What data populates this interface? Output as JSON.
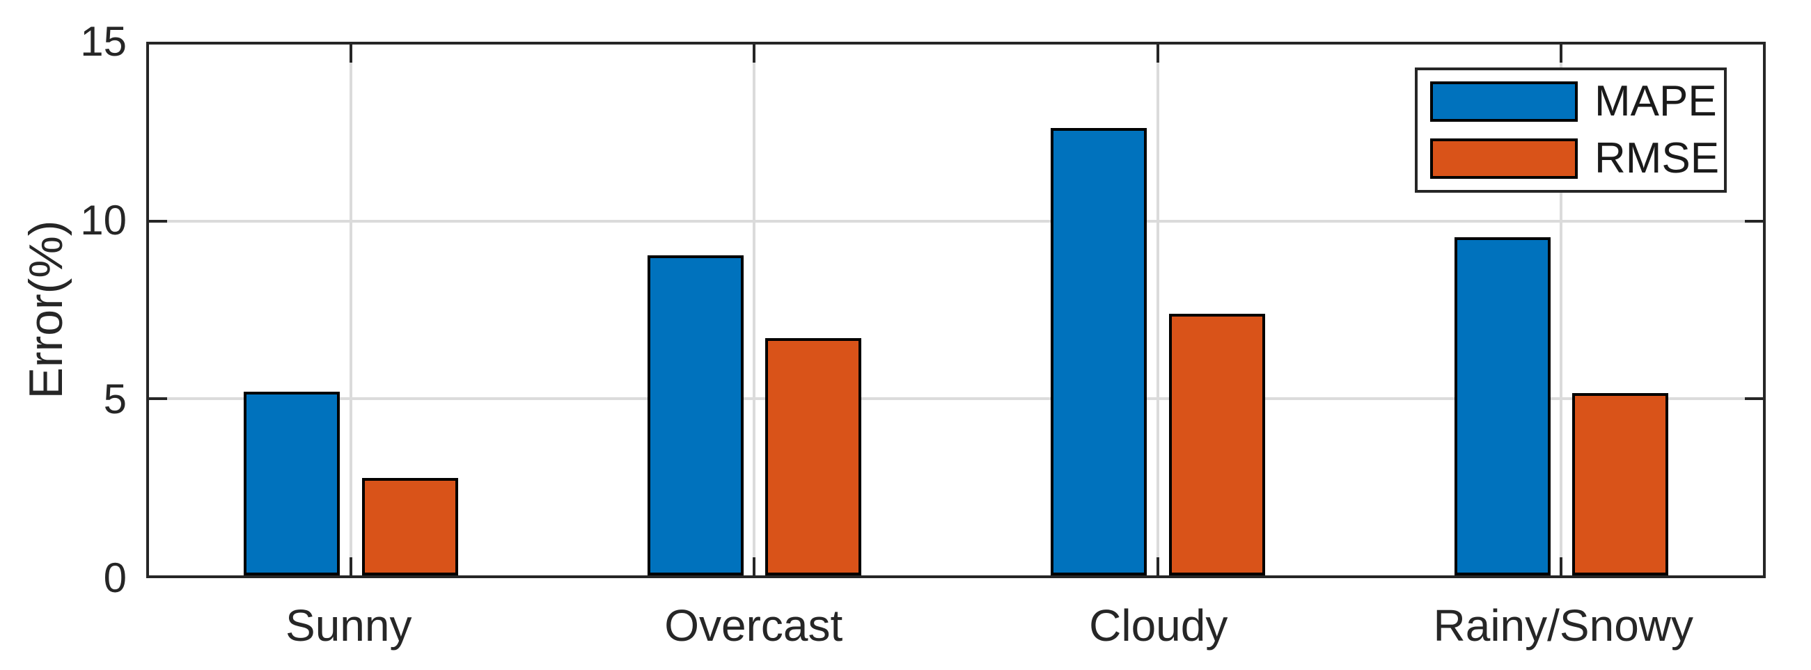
{
  "chart_data": {
    "type": "bar",
    "title": "",
    "xlabel": "",
    "ylabel": "Error(%)",
    "categories": [
      "Sunny",
      "Overcast",
      "Cloudy",
      "Rainy/Snowy"
    ],
    "series": [
      {
        "name": "MAPE",
        "color": "#0072BD",
        "values": [
          5.2,
          9.05,
          12.65,
          9.55
        ]
      },
      {
        "name": "RMSE",
        "color": "#D95319",
        "values": [
          2.75,
          6.7,
          7.4,
          5.15
        ]
      }
    ],
    "ylim": [
      0,
      15
    ],
    "yticks": [
      0,
      5,
      10,
      15
    ],
    "grid": true,
    "grid_color": "#dbdbdb",
    "axis_color": "#262626",
    "bar_edge_color": "#000000",
    "legend_position": "top-right",
    "background": "#ffffff"
  }
}
